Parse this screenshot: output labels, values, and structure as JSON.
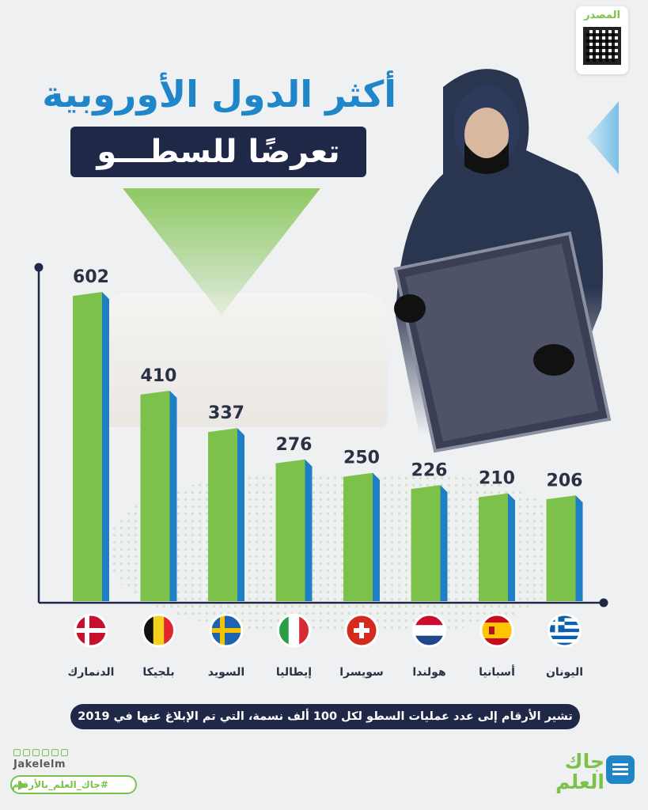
{
  "title": {
    "line1": "أكثر الدول الأوروبية",
    "line2": "تعرضًا للسطـــو"
  },
  "source_label": "المصدر",
  "note": "تشير الأرقام إلى عدد عمليات السطو لكل 100 ألف نسمة، التي تم الإبلاغ عنها في 2019",
  "brand": {
    "handle": "Jakelelm",
    "hashtag": "#جاك_العلم_بالأرقام",
    "name_line1": "جاك",
    "name_line2": "العلم"
  },
  "icons": [
    "telegram-icon",
    "twitter-icon",
    "snapchat-icon",
    "youtube-icon",
    "instagram-icon",
    "facebook-icon"
  ],
  "colors": {
    "bar_front": "#7cc24a",
    "bar_side": "#1e7fc4",
    "axis": "#202848",
    "title_blue": "#1f86c9",
    "dark_navy": "#202848"
  },
  "chart_data": {
    "type": "bar",
    "categories": [
      "الدنمارك",
      "بلجيكا",
      "السويد",
      "إيطاليا",
      "سويسرا",
      "هولندا",
      "أسبانيا",
      "اليونان"
    ],
    "values": [
      602,
      410,
      337,
      276,
      250,
      226,
      210,
      206
    ],
    "flags": [
      "denmark",
      "belgium",
      "sweden",
      "italy",
      "switzerland",
      "netherlands",
      "spain",
      "greece"
    ],
    "ylim": [
      0,
      650
    ],
    "grid": false,
    "data_labels": true
  }
}
